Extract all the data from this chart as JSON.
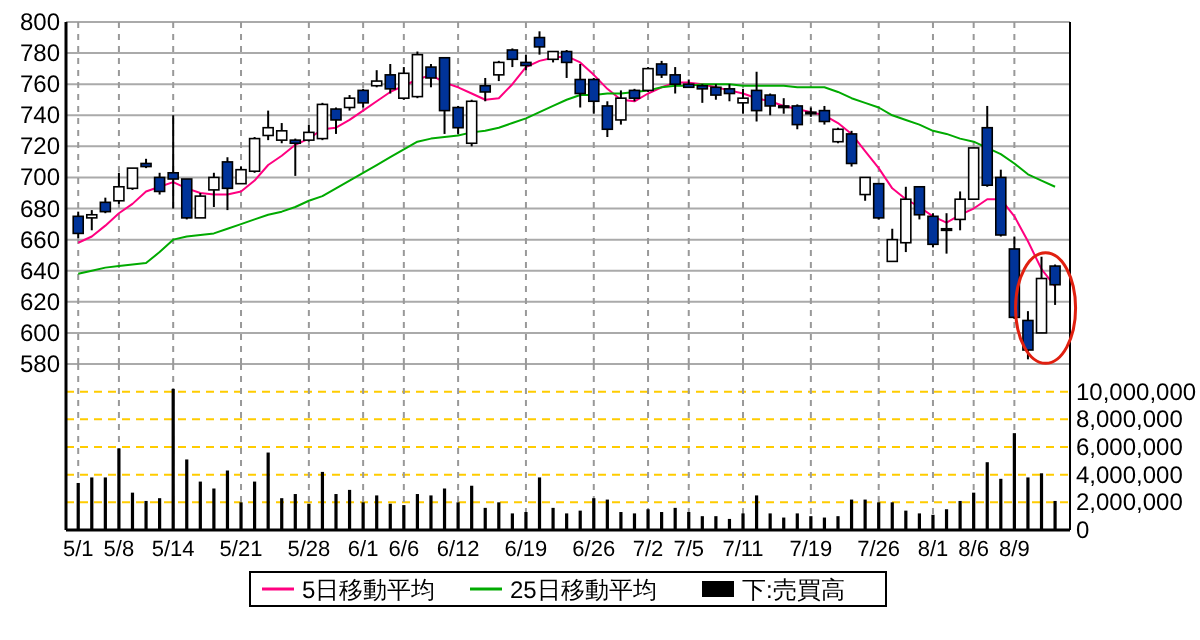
{
  "chart_data": [
    {
      "type": "candlestick",
      "tick_labels": "y",
      "grid": true,
      "legend": "bottom",
      "categories": [
        null,
        null,
        null,
        null,
        null,
        null,
        null,
        null,
        null,
        null,
        null,
        null,
        null,
        null,
        null,
        null,
        null,
        null,
        null,
        null,
        null,
        null,
        null,
        null,
        null,
        null,
        null,
        null,
        null,
        null,
        null,
        null,
        null,
        null,
        null,
        null,
        null,
        null,
        null,
        null,
        null,
        null,
        null,
        null,
        null,
        null,
        null,
        null,
        null,
        null,
        null,
        null,
        null,
        null,
        null,
        null,
        null,
        null,
        null,
        null,
        null,
        null,
        null,
        null,
        null,
        null,
        null,
        null,
        null,
        null,
        null,
        null,
        null
      ],
      "ohlc": [
        [
          675,
          678,
          661,
          664
        ],
        [
          674,
          679,
          666,
          676
        ],
        [
          684,
          687,
          677,
          678
        ],
        [
          685,
          703,
          683,
          694
        ],
        [
          693,
          706,
          692,
          706
        ],
        [
          709,
          712,
          706,
          707
        ],
        [
          700,
          703,
          689,
          691
        ],
        [
          703,
          740,
          680,
          699
        ],
        [
          699,
          699,
          673,
          674
        ],
        [
          674,
          690,
          674,
          688
        ],
        [
          692,
          703,
          681,
          700
        ],
        [
          710,
          713,
          679,
          693
        ],
        [
          696,
          707,
          696,
          705
        ],
        [
          704,
          726,
          703,
          725
        ],
        [
          727,
          743,
          724,
          732
        ],
        [
          724,
          735,
          722,
          730
        ],
        [
          724,
          725,
          701,
          722
        ],
        [
          724,
          734,
          723,
          729
        ],
        [
          725,
          748,
          724,
          747
        ],
        [
          744,
          745,
          728,
          737
        ],
        [
          745,
          753,
          743,
          751
        ],
        [
          756,
          757,
          745,
          748
        ],
        [
          759,
          769,
          758,
          762
        ],
        [
          766,
          773,
          754,
          757
        ],
        [
          751,
          771,
          750,
          767
        ],
        [
          752,
          781,
          751,
          779
        ],
        [
          771,
          773,
          758,
          764
        ],
        [
          777,
          777,
          728,
          743
        ],
        [
          745,
          746,
          728,
          732
        ],
        [
          722,
          750,
          720,
          749
        ],
        [
          759,
          764,
          749,
          755
        ],
        [
          766,
          775,
          762,
          774
        ],
        [
          782,
          783,
          771,
          776
        ],
        [
          774,
          779,
          769,
          772
        ],
        [
          790,
          794,
          779,
          784
        ],
        [
          776,
          781,
          774,
          781
        ],
        [
          781,
          782,
          764,
          774
        ],
        [
          763,
          773,
          745,
          754
        ],
        [
          763,
          764,
          741,
          749
        ],
        [
          746,
          749,
          726,
          731
        ],
        [
          737,
          756,
          734,
          751
        ],
        [
          756,
          757,
          749,
          751
        ],
        [
          756,
          771,
          755,
          770
        ],
        [
          773,
          775,
          764,
          766
        ],
        [
          766,
          771,
          754,
          760
        ],
        [
          760,
          763,
          758,
          758
        ],
        [
          759,
          760,
          748,
          757
        ],
        [
          758,
          760,
          750,
          753
        ],
        [
          757,
          760,
          749,
          754
        ],
        [
          748,
          757,
          741,
          751
        ],
        [
          756,
          768,
          736,
          743
        ],
        [
          753,
          754,
          740,
          746
        ],
        [
          746,
          751,
          741,
          745
        ],
        [
          746,
          747,
          731,
          734
        ],
        [
          742,
          745,
          739,
          741
        ],
        [
          743,
          746,
          734,
          736
        ],
        [
          723,
          732,
          722,
          731
        ],
        [
          728,
          730,
          707,
          709
        ],
        [
          689,
          700,
          685,
          700
        ],
        [
          696,
          696,
          673,
          674
        ],
        [
          646,
          667,
          646,
          660
        ],
        [
          658,
          694,
          652,
          686
        ],
        [
          694,
          694,
          673,
          676
        ],
        [
          675,
          677,
          655,
          657
        ],
        [
          667,
          677,
          651,
          666
        ],
        [
          673,
          691,
          666,
          686
        ],
        [
          686,
          719,
          686,
          719
        ],
        [
          732,
          746,
          694,
          695
        ],
        [
          700,
          705,
          662,
          663
        ],
        [
          654,
          662,
          609,
          610
        ],
        [
          608,
          614,
          583,
          589
        ],
        [
          600,
          649,
          600,
          635
        ],
        [
          643,
          644,
          618,
          631
        ]
      ],
      "colors": [
        "#003399",
        "#ffffff",
        "#003399",
        "#ffffff",
        "#ffffff",
        "#003399",
        "#003399",
        "#003399",
        "#003399",
        "#ffffff",
        "#ffffff",
        "#003399",
        "#ffffff",
        "#ffffff",
        "#ffffff",
        "#ffffff",
        "#003399",
        "#ffffff",
        "#ffffff",
        "#003399",
        "#ffffff",
        "#003399",
        "#ffffff",
        "#003399",
        "#ffffff",
        "#ffffff",
        "#003399",
        "#003399",
        "#003399",
        "#ffffff",
        "#003399",
        "#ffffff",
        "#003399",
        "#003399",
        "#003399",
        "#ffffff",
        "#003399",
        "#003399",
        "#003399",
        "#003399",
        "#ffffff",
        "#003399",
        "#ffffff",
        "#003399",
        "#003399",
        "#003399",
        "#003399",
        "#003399",
        "#003399",
        "#ffffff",
        "#003399",
        "#003399",
        "#003399",
        "#003399",
        "#003399",
        "#003399",
        "#ffffff",
        "#003399",
        "#ffffff",
        "#003399",
        "#ffffff",
        "#ffffff",
        "#003399",
        "#003399",
        "#003399",
        "#ffffff",
        "#ffffff",
        "#003399",
        "#003399",
        "#003399",
        "#003399",
        "#ffffff",
        "#003399"
      ],
      "series": [
        {
          "type": "line",
          "name": "5日移動平均",
          "color": "#ff0080",
          "values": [
            658,
            662,
            669,
            677,
            683,
            691,
            694,
            697,
            693,
            690,
            689,
            689,
            691,
            698,
            708,
            714,
            721,
            725,
            731,
            732,
            737,
            743,
            749,
            755,
            759,
            763,
            766,
            761,
            758,
            754,
            750,
            751,
            760,
            771,
            775,
            777,
            778,
            774,
            766,
            757,
            750,
            749,
            754,
            758,
            761,
            761,
            760,
            758,
            756,
            754,
            751,
            749,
            746,
            744,
            742,
            740,
            735,
            728,
            717,
            706,
            693,
            686,
            681,
            675,
            671,
            676,
            680,
            686,
            686,
            675,
            659,
            641,
            630
          ]
        },
        {
          "type": "line",
          "name": "25日移動平均",
          "color": "#00aa00",
          "values": [
            638,
            640,
            642,
            643,
            644,
            645,
            652,
            660,
            662,
            663,
            664,
            667,
            670,
            673,
            676,
            678,
            681,
            685,
            688,
            693,
            698,
            703,
            708,
            713,
            718,
            723,
            725,
            726,
            727,
            729,
            730,
            732,
            735,
            738,
            742,
            746,
            750,
            753,
            753,
            754,
            754,
            755,
            756,
            758,
            759,
            759,
            760,
            760,
            760,
            759,
            759,
            759,
            759,
            758,
            758,
            758,
            755,
            751,
            748,
            745,
            740,
            737,
            734,
            730,
            728,
            725,
            723,
            719,
            715,
            709,
            702,
            698,
            694
          ]
        }
      ],
      "ylim": [
        580,
        800
      ],
      "yticks": [
        580,
        600,
        620,
        640,
        660,
        680,
        700,
        720,
        740,
        760,
        780,
        800
      ]
    },
    {
      "type": "bar",
      "grid": true,
      "legend": "bottom",
      "categories": [
        "5/1",
        null,
        null,
        "5/8",
        null,
        null,
        null,
        "5/14",
        null,
        null,
        null,
        null,
        "5/21",
        null,
        null,
        null,
        null,
        "5/28",
        null,
        null,
        null,
        "6/1",
        null,
        null,
        "6/6",
        null,
        null,
        null,
        "6/12",
        null,
        null,
        null,
        null,
        "6/19",
        null,
        null,
        null,
        null,
        "6/26",
        null,
        null,
        null,
        "7/2",
        null,
        null,
        "7/5",
        null,
        null,
        null,
        "7/11",
        null,
        null,
        null,
        null,
        "7/19",
        null,
        null,
        null,
        null,
        "7/26",
        null,
        null,
        null,
        "8/1",
        null,
        null,
        "8/6",
        null,
        null,
        "8/9",
        null,
        null,
        null
      ],
      "series": [
        {
          "name": "下:売買高",
          "color": "#000000",
          "axis": "y2",
          "values": [
            3400000,
            3800000,
            3800000,
            5900000,
            2700000,
            2100000,
            2300000,
            10200000,
            5100000,
            3500000,
            3000000,
            4300000,
            2000000,
            3500000,
            5600000,
            2300000,
            2600000,
            1900000,
            4200000,
            2600000,
            2900000,
            2000000,
            2500000,
            1900000,
            1800000,
            2600000,
            2500000,
            3000000,
            2000000,
            3200000,
            1600000,
            2000000,
            1200000,
            1300000,
            3800000,
            1600000,
            1200000,
            1400000,
            2300000,
            2200000,
            1300000,
            1200000,
            1500000,
            1300000,
            1600000,
            1300000,
            1000000,
            1000000,
            800000,
            1200000,
            2500000,
            1200000,
            900000,
            1200000,
            1000000,
            900000,
            1000000,
            2200000,
            2200000,
            2000000,
            2000000,
            1400000,
            1200000,
            1100000,
            1500000,
            2100000,
            2700000,
            4900000,
            3700000,
            7000000,
            3800000,
            4100000,
            2100000
          ]
        }
      ],
      "y2lim": [
        0,
        12000000
      ],
      "y2ticks": [
        0,
        {
          "value": 2000000,
          "label": "2,000,000"
        },
        {
          "value": 4000000,
          "label": "4,000,000"
        },
        {
          "value": 6000000,
          "label": "6,000,000"
        },
        {
          "value": 8000000,
          "label": "8,000,000"
        },
        {
          "value": 10000000,
          "label": "10,000,000"
        }
      ]
    }
  ]
}
